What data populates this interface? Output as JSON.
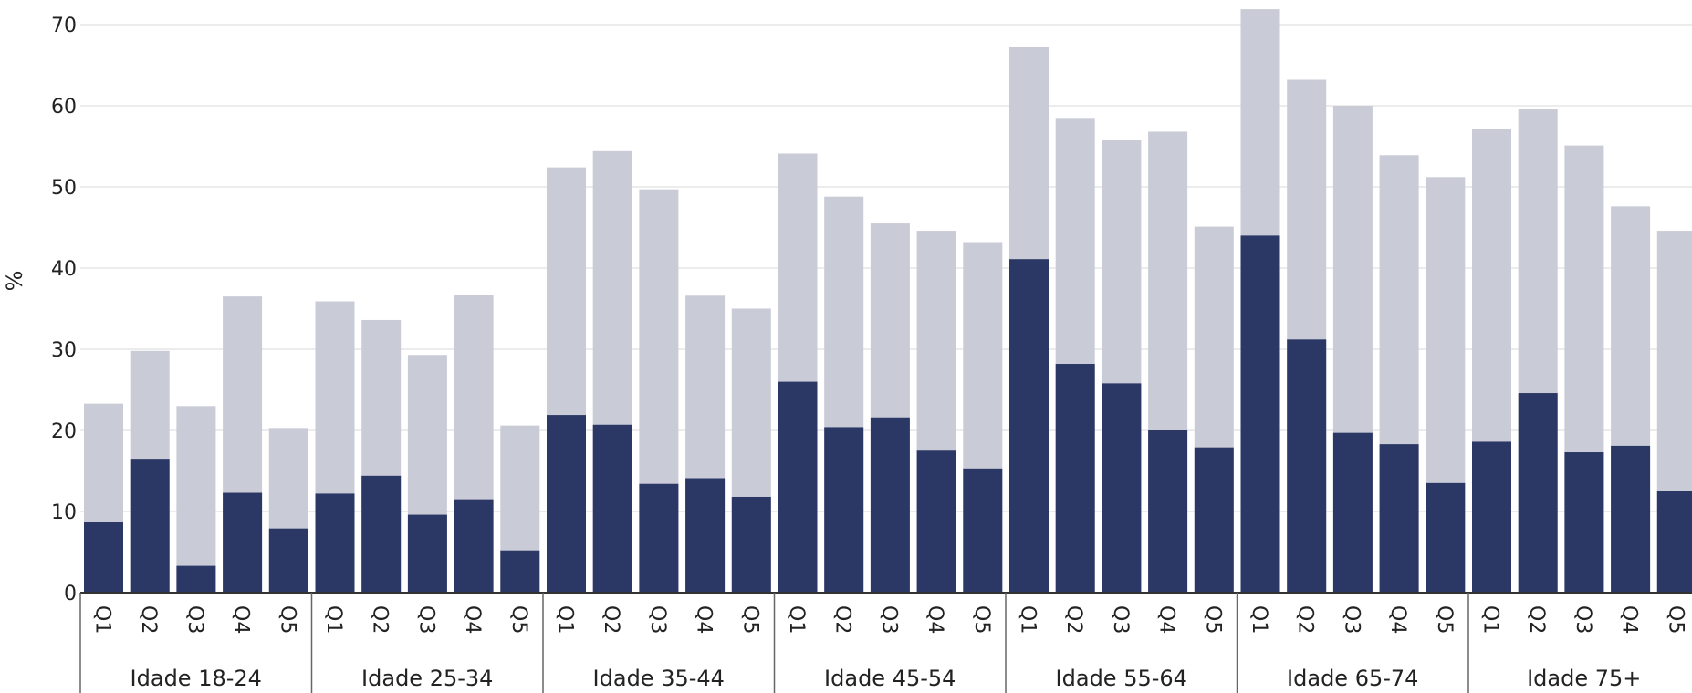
{
  "chart_data": {
    "type": "bar",
    "stacked": false,
    "overlapping_bars": true,
    "ylabel": "%",
    "xlabel": "",
    "ylim": [
      0,
      72
    ],
    "yticks": [
      0,
      10,
      20,
      30,
      40,
      50,
      60,
      70
    ],
    "grid": true,
    "groups": [
      "Idade 18-24",
      "Idade 25-34",
      "Idade 35-44",
      "Idade 45-54",
      "Idade 55-64",
      "Idade 65-74",
      "Idade 75+"
    ],
    "categories": [
      "Q1",
      "Q2",
      "Q3",
      "Q4",
      "Q5"
    ],
    "series": [
      {
        "color": "#c9cbd6",
        "values": [
          [
            23.3,
            29.8,
            23.0,
            36.5,
            20.3
          ],
          [
            35.9,
            33.6,
            29.3,
            36.7,
            20.6
          ],
          [
            52.4,
            54.4,
            49.7,
            36.6,
            35.0
          ],
          [
            54.1,
            48.8,
            45.5,
            44.6,
            43.2
          ],
          [
            67.3,
            58.5,
            55.8,
            56.8,
            45.1
          ],
          [
            71.9,
            63.2,
            60.0,
            53.9,
            51.2
          ],
          [
            57.1,
            59.6,
            55.1,
            47.6,
            44.6
          ]
        ]
      },
      {
        "color": "#2b3764",
        "values": [
          [
            8.7,
            16.5,
            3.3,
            12.3,
            7.9
          ],
          [
            12.2,
            14.4,
            9.6,
            11.5,
            5.2
          ],
          [
            21.9,
            20.7,
            13.4,
            14.1,
            11.8
          ],
          [
            26.0,
            20.4,
            21.6,
            17.5,
            15.3
          ],
          [
            41.1,
            28.2,
            25.8,
            20.0,
            17.9
          ],
          [
            44.0,
            31.2,
            19.7,
            18.3,
            13.5
          ],
          [
            18.6,
            24.6,
            17.3,
            18.1,
            12.5
          ]
        ]
      }
    ]
  }
}
